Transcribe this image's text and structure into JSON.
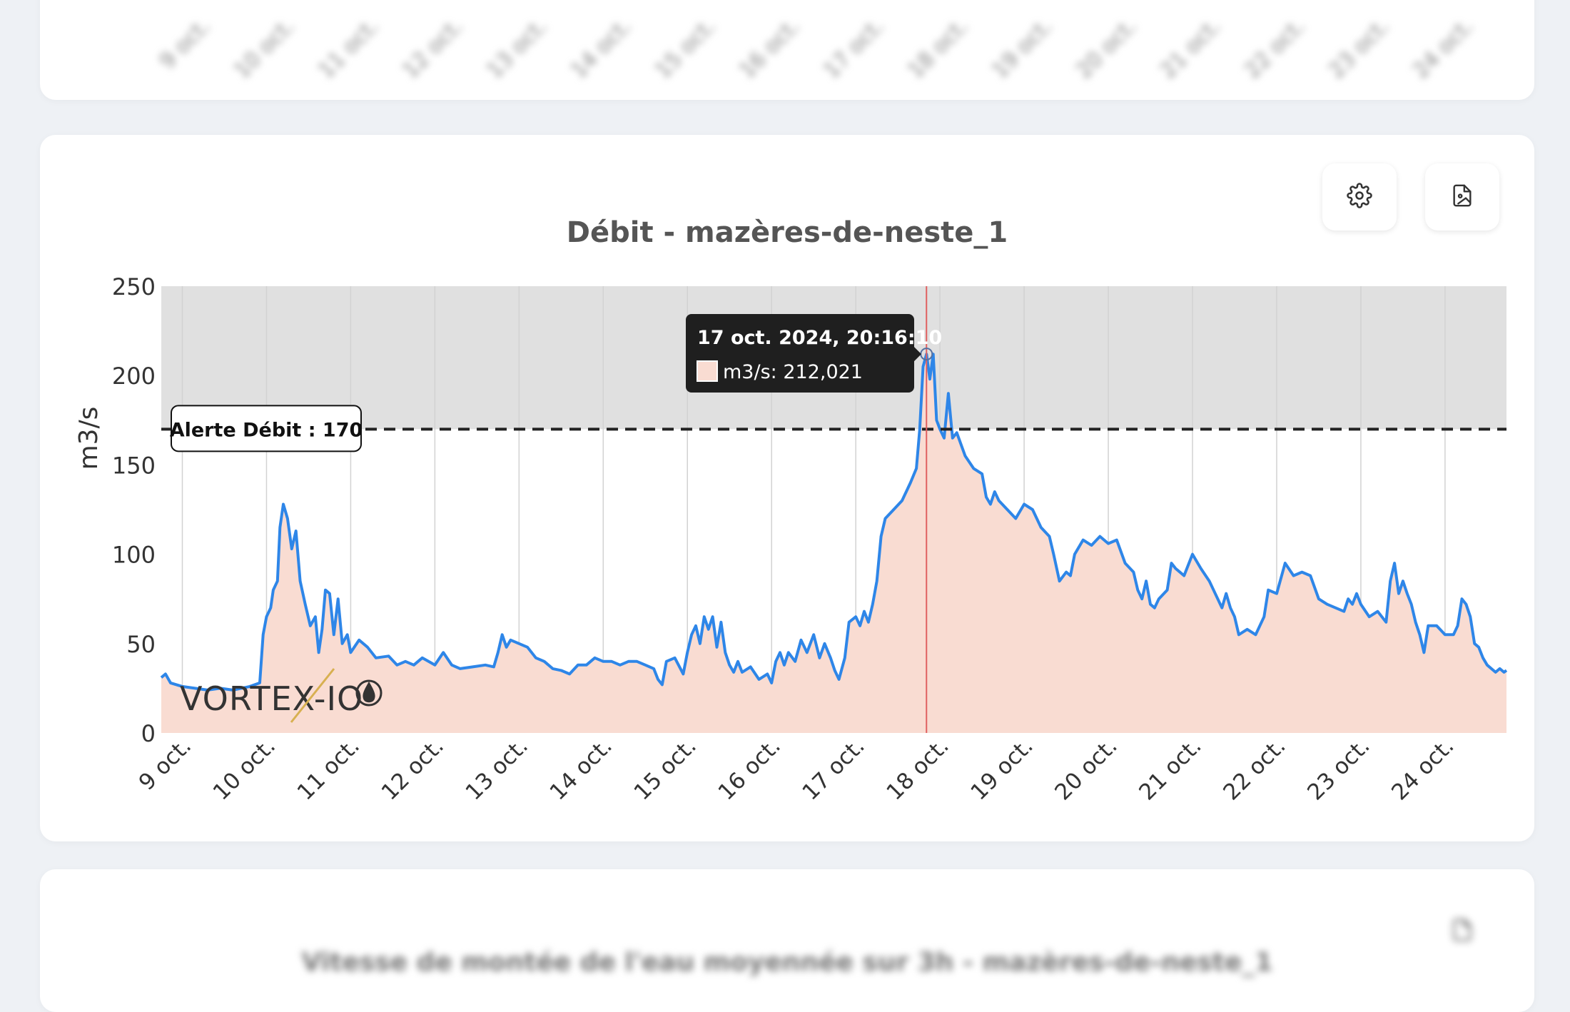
{
  "chart_title": "Débit - mazères-de-neste_1",
  "buttons": {
    "settings_icon": "gear-icon",
    "export_icon": "image-file-icon"
  },
  "tooltip": {
    "date": "17 oct. 2024, 20:16:10",
    "value": "m3/s: 212,021",
    "swatch_color": "#f9dcd2"
  },
  "alert": {
    "label": "Alerte Débit : 170",
    "value": 170
  },
  "logo_text": "VORTEX-IO",
  "bottom_title": "Vitesse de montée de l'eau moyennée sur 3h - mazères-de-neste_1",
  "top_card_ticks": [
    "9 oct.",
    "10 oct.",
    "11 oct.",
    "12 oct.",
    "13 oct.",
    "14 oct.",
    "15 oct.",
    "16 oct.",
    "17 oct.",
    "18 oct.",
    "19 oct.",
    "20 oct.",
    "21 oct.",
    "22 oct.",
    "23 oct.",
    "24 oct."
  ],
  "colors": {
    "line": "#2e86e8",
    "area": "#f9dcd2",
    "alert_zone": "#e0e0e0",
    "cursor": "#e06060",
    "tooltip_bg": "#1f1f1f"
  },
  "chart_data": {
    "type": "area",
    "title": "Débit - mazères-de-neste_1",
    "ylabel": "m3/s",
    "xlabel": "",
    "ylim": [
      0,
      250
    ],
    "yticks": [
      0,
      50,
      100,
      150,
      200,
      250
    ],
    "xlim_days": [
      8.75,
      24.73
    ],
    "xtick_days": [
      9,
      10,
      11,
      12,
      13,
      14,
      15,
      16,
      17,
      18,
      19,
      20,
      21,
      22,
      23,
      24
    ],
    "xtick_labels": [
      "9 oct.",
      "10 oct.",
      "11 oct.",
      "12 oct.",
      "13 oct.",
      "14 oct.",
      "15 oct.",
      "16 oct.",
      "17 oct.",
      "18 oct.",
      "19 oct.",
      "20 oct.",
      "21 oct.",
      "22 oct.",
      "23 oct.",
      "24 oct."
    ],
    "alert_threshold": 170,
    "cursor_day": 17.84,
    "series": [
      {
        "name": "m3/s",
        "points": [
          [
            8.75,
            31
          ],
          [
            8.8,
            33
          ],
          [
            8.86,
            28
          ],
          [
            9.0,
            26
          ],
          [
            9.15,
            25
          ],
          [
            9.3,
            24
          ],
          [
            9.45,
            25
          ],
          [
            9.6,
            24
          ],
          [
            9.8,
            26
          ],
          [
            9.92,
            28
          ],
          [
            9.96,
            55
          ],
          [
            10.0,
            65
          ],
          [
            10.05,
            70
          ],
          [
            10.08,
            80
          ],
          [
            10.13,
            85
          ],
          [
            10.16,
            115
          ],
          [
            10.2,
            128
          ],
          [
            10.25,
            120
          ],
          [
            10.3,
            103
          ],
          [
            10.35,
            113
          ],
          [
            10.4,
            85
          ],
          [
            10.46,
            72
          ],
          [
            10.52,
            60
          ],
          [
            10.58,
            65
          ],
          [
            10.62,
            45
          ],
          [
            10.66,
            58
          ],
          [
            10.7,
            80
          ],
          [
            10.75,
            78
          ],
          [
            10.8,
            55
          ],
          [
            10.85,
            75
          ],
          [
            10.9,
            50
          ],
          [
            10.96,
            55
          ],
          [
            11.0,
            45
          ],
          [
            11.1,
            52
          ],
          [
            11.2,
            48
          ],
          [
            11.3,
            42
          ],
          [
            11.45,
            43
          ],
          [
            11.55,
            38
          ],
          [
            11.65,
            40
          ],
          [
            11.75,
            38
          ],
          [
            11.85,
            42
          ],
          [
            12.0,
            38
          ],
          [
            12.1,
            45
          ],
          [
            12.2,
            38
          ],
          [
            12.3,
            36
          ],
          [
            12.45,
            37
          ],
          [
            12.6,
            38
          ],
          [
            12.7,
            37
          ],
          [
            12.75,
            45
          ],
          [
            12.8,
            55
          ],
          [
            12.85,
            48
          ],
          [
            12.9,
            52
          ],
          [
            13.0,
            50
          ],
          [
            13.1,
            48
          ],
          [
            13.2,
            42
          ],
          [
            13.3,
            40
          ],
          [
            13.4,
            36
          ],
          [
            13.5,
            35
          ],
          [
            13.6,
            33
          ],
          [
            13.7,
            38
          ],
          [
            13.8,
            38
          ],
          [
            13.9,
            42
          ],
          [
            14.0,
            40
          ],
          [
            14.1,
            40
          ],
          [
            14.2,
            38
          ],
          [
            14.3,
            40
          ],
          [
            14.4,
            40
          ],
          [
            14.5,
            38
          ],
          [
            14.6,
            36
          ],
          [
            14.65,
            30
          ],
          [
            14.7,
            27
          ],
          [
            14.75,
            40
          ],
          [
            14.85,
            42
          ],
          [
            14.95,
            33
          ],
          [
            15.0,
            45
          ],
          [
            15.05,
            55
          ],
          [
            15.1,
            60
          ],
          [
            15.15,
            50
          ],
          [
            15.2,
            65
          ],
          [
            15.25,
            58
          ],
          [
            15.3,
            65
          ],
          [
            15.35,
            48
          ],
          [
            15.4,
            62
          ],
          [
            15.45,
            45
          ],
          [
            15.5,
            38
          ],
          [
            15.55,
            34
          ],
          [
            15.6,
            40
          ],
          [
            15.65,
            34
          ],
          [
            15.75,
            37
          ],
          [
            15.85,
            30
          ],
          [
            15.95,
            33
          ],
          [
            16.0,
            28
          ],
          [
            16.05,
            40
          ],
          [
            16.1,
            45
          ],
          [
            16.15,
            38
          ],
          [
            16.2,
            45
          ],
          [
            16.28,
            40
          ],
          [
            16.35,
            52
          ],
          [
            16.42,
            45
          ],
          [
            16.5,
            55
          ],
          [
            16.57,
            42
          ],
          [
            16.63,
            50
          ],
          [
            16.7,
            42
          ],
          [
            16.75,
            35
          ],
          [
            16.8,
            30
          ],
          [
            16.87,
            42
          ],
          [
            16.92,
            62
          ],
          [
            17.0,
            65
          ],
          [
            17.05,
            60
          ],
          [
            17.1,
            68
          ],
          [
            17.15,
            62
          ],
          [
            17.2,
            72
          ],
          [
            17.25,
            85
          ],
          [
            17.3,
            110
          ],
          [
            17.35,
            120
          ],
          [
            17.45,
            125
          ],
          [
            17.55,
            130
          ],
          [
            17.65,
            140
          ],
          [
            17.72,
            148
          ],
          [
            17.76,
            170
          ],
          [
            17.8,
            205
          ],
          [
            17.84,
            212
          ],
          [
            17.88,
            198
          ],
          [
            17.92,
            212
          ],
          [
            17.96,
            175
          ],
          [
            18.0,
            170
          ],
          [
            18.05,
            165
          ],
          [
            18.1,
            190
          ],
          [
            18.15,
            165
          ],
          [
            18.2,
            168
          ],
          [
            18.3,
            155
          ],
          [
            18.4,
            148
          ],
          [
            18.5,
            145
          ],
          [
            18.55,
            132
          ],
          [
            18.6,
            128
          ],
          [
            18.65,
            135
          ],
          [
            18.7,
            130
          ],
          [
            18.8,
            125
          ],
          [
            18.9,
            120
          ],
          [
            19.0,
            128
          ],
          [
            19.1,
            125
          ],
          [
            19.2,
            115
          ],
          [
            19.3,
            110
          ],
          [
            19.35,
            100
          ],
          [
            19.42,
            85
          ],
          [
            19.5,
            90
          ],
          [
            19.55,
            88
          ],
          [
            19.6,
            100
          ],
          [
            19.7,
            108
          ],
          [
            19.8,
            105
          ],
          [
            19.9,
            110
          ],
          [
            20.0,
            106
          ],
          [
            20.1,
            108
          ],
          [
            20.2,
            95
          ],
          [
            20.3,
            90
          ],
          [
            20.35,
            80
          ],
          [
            20.4,
            75
          ],
          [
            20.45,
            85
          ],
          [
            20.5,
            72
          ],
          [
            20.55,
            70
          ],
          [
            20.6,
            75
          ],
          [
            20.7,
            80
          ],
          [
            20.75,
            95
          ],
          [
            20.8,
            92
          ],
          [
            20.9,
            88
          ],
          [
            21.0,
            100
          ],
          [
            21.1,
            92
          ],
          [
            21.2,
            85
          ],
          [
            21.3,
            75
          ],
          [
            21.35,
            70
          ],
          [
            21.4,
            78
          ],
          [
            21.45,
            70
          ],
          [
            21.5,
            65
          ],
          [
            21.55,
            55
          ],
          [
            21.65,
            58
          ],
          [
            21.75,
            55
          ],
          [
            21.85,
            65
          ],
          [
            21.9,
            80
          ],
          [
            22.0,
            78
          ],
          [
            22.1,
            95
          ],
          [
            22.2,
            88
          ],
          [
            22.3,
            90
          ],
          [
            22.4,
            88
          ],
          [
            22.5,
            75
          ],
          [
            22.6,
            72
          ],
          [
            22.7,
            70
          ],
          [
            22.8,
            68
          ],
          [
            22.85,
            75
          ],
          [
            22.9,
            72
          ],
          [
            22.95,
            78
          ],
          [
            23.0,
            72
          ],
          [
            23.1,
            65
          ],
          [
            23.2,
            68
          ],
          [
            23.3,
            62
          ],
          [
            23.35,
            85
          ],
          [
            23.4,
            95
          ],
          [
            23.45,
            78
          ],
          [
            23.5,
            85
          ],
          [
            23.55,
            78
          ],
          [
            23.6,
            72
          ],
          [
            23.65,
            62
          ],
          [
            23.7,
            55
          ],
          [
            23.75,
            45
          ],
          [
            23.8,
            60
          ],
          [
            23.9,
            60
          ],
          [
            24.0,
            55
          ],
          [
            24.1,
            55
          ],
          [
            24.15,
            60
          ],
          [
            24.2,
            75
          ],
          [
            24.25,
            72
          ],
          [
            24.3,
            65
          ],
          [
            24.35,
            50
          ],
          [
            24.4,
            48
          ],
          [
            24.45,
            42
          ],
          [
            24.5,
            38
          ],
          [
            24.55,
            36
          ],
          [
            24.6,
            34
          ],
          [
            24.65,
            36
          ],
          [
            24.7,
            34
          ],
          [
            24.73,
            35
          ]
        ]
      }
    ]
  }
}
